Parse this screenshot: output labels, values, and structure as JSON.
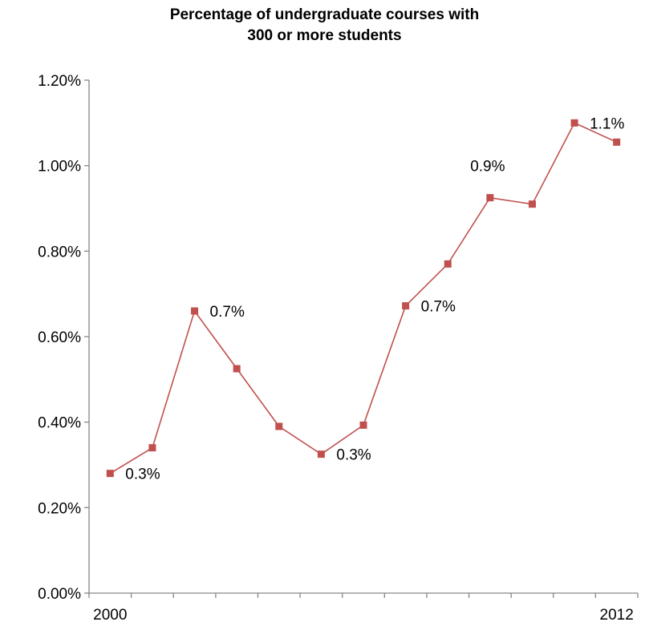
{
  "chart_data": {
    "type": "line",
    "title_lines": [
      "Percentage of undergraduate courses with",
      "300 or more students"
    ],
    "xlabel": "",
    "ylabel": "",
    "x": [
      2000,
      2001,
      2002,
      2003,
      2004,
      2005,
      2006,
      2007,
      2008,
      2009,
      2010,
      2011,
      2012
    ],
    "x_tick_labels": [
      {
        "index": 0,
        "label": "2000"
      },
      {
        "index": 12,
        "label": "2012"
      }
    ],
    "series": [
      {
        "values": [
          0.28,
          0.34,
          0.66,
          0.525,
          0.39,
          0.325,
          0.393,
          0.672,
          0.77,
          0.925,
          0.91,
          1.1,
          1.055
        ],
        "color": "#c0504d"
      }
    ],
    "data_labels": [
      {
        "index": 0,
        "text": "0.3%"
      },
      {
        "index": 2,
        "text": "0.7%"
      },
      {
        "index": 5,
        "text": "0.3%"
      },
      {
        "index": 7,
        "text": "0.7%"
      },
      {
        "index": 9,
        "text": "0.9%"
      },
      {
        "index": 11,
        "text": "1.1%"
      }
    ],
    "y_ticks": [
      {
        "value": 0.0,
        "label": "0.00%"
      },
      {
        "value": 0.2,
        "label": "0.20%"
      },
      {
        "value": 0.4,
        "label": "0.40%"
      },
      {
        "value": 0.6,
        "label": "0.60%"
      },
      {
        "value": 0.8,
        "label": "0.80%"
      },
      {
        "value": 1.0,
        "label": "1.00%"
      },
      {
        "value": 1.2,
        "label": "1.20%"
      }
    ],
    "ylim": [
      0,
      1.2
    ],
    "grid": false,
    "legend": "none"
  }
}
